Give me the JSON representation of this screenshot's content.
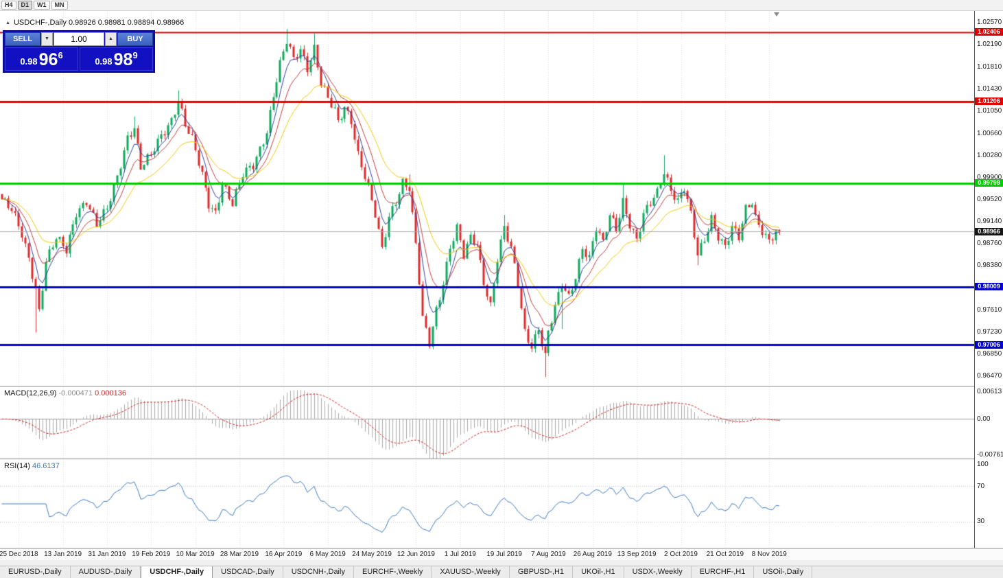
{
  "toolbar": {
    "timeframes": [
      "H4",
      "D1",
      "W1",
      "MN"
    ],
    "active": "D1"
  },
  "chart": {
    "title": "USDCHF-,Daily 0.98926 0.98981 0.98894 0.98966"
  },
  "icons": {
    "collapse": "▲",
    "spin_up": "▲",
    "spin_down": "▼"
  },
  "trade_panel": {
    "sell_label": "SELL",
    "buy_label": "BUY",
    "volume": "1.00",
    "sell_price": {
      "base": "0.98",
      "big": "96",
      "sup": "6"
    },
    "buy_price": {
      "base": "0.98",
      "big": "98",
      "sup": "9"
    }
  },
  "tabs": {
    "items": [
      "EURUSD-,Daily",
      "AUDUSD-,Daily",
      "USDCHF-,Daily",
      "USDCAD-,Daily",
      "USDCNH-,Daily",
      "EURCHF-,Weekly",
      "XAUUSD-,Weekly",
      "GBPUSD-,H1",
      "UKOil-,H1",
      "USDX-,Weekly",
      "EURCHF-,H1",
      "USOil-,Daily"
    ],
    "active_index": 2
  },
  "chart_data": {
    "type": "candlestick",
    "symbol": "USDCHF-",
    "timeframe": "Daily",
    "ohlc_display": {
      "open": "0.98926",
      "high": "0.98981",
      "low": "0.98894",
      "close": "0.98966"
    },
    "colors": {
      "up": "#0fa95c",
      "down": "#dd2b2b"
    },
    "price_axis": {
      "min": 0.963,
      "max": 1.0277,
      "ticks": [
        "1.02570",
        "1.02190",
        "1.01810",
        "1.01430",
        "1.01050",
        "1.00660",
        "1.00280",
        "0.99900",
        "0.99520",
        "0.99140",
        "0.98760",
        "0.98380",
        "0.97610",
        "0.97230",
        "0.96850",
        "0.96470"
      ]
    },
    "hlines": [
      {
        "price": 1.02406,
        "label": "1.02406",
        "color": "#e00000",
        "width": 2
      },
      {
        "price": 1.01206,
        "label": "1.01206",
        "color": "#e00000",
        "width": 3
      },
      {
        "price": 0.99798,
        "label": "0.99798",
        "color": "#00cc00",
        "width": 3
      },
      {
        "price": 0.98009,
        "label": "0.98009",
        "color": "#0000d0",
        "width": 3
      },
      {
        "price": 0.97006,
        "label": "0.97006",
        "color": "#0000d0",
        "width": 3
      }
    ],
    "current_price": {
      "price": 0.98966,
      "label": "0.98966"
    },
    "candles": {
      "count": 230,
      "spacing": 4.95,
      "anchors": [
        [
          0,
          0.9952
        ],
        [
          3,
          0.993
        ],
        [
          6,
          0.989
        ],
        [
          8,
          0.9852
        ],
        [
          10,
          0.98
        ],
        [
          11,
          0.9762
        ],
        [
          13,
          0.9845
        ],
        [
          16,
          0.9882
        ],
        [
          19,
          0.9862
        ],
        [
          22,
          0.9932
        ],
        [
          25,
          0.9952
        ],
        [
          28,
          0.9906
        ],
        [
          31,
          0.9932
        ],
        [
          34,
          0.9992
        ],
        [
          37,
          1.0062
        ],
        [
          39,
          1.0078
        ],
        [
          41,
          1.0005
        ],
        [
          44,
          1.0025
        ],
        [
          47,
          1.0062
        ],
        [
          50,
          1.0092
        ],
        [
          52,
          1.0125
        ],
        [
          54,
          1.008
        ],
        [
          56,
          1.0052
        ],
        [
          59,
          0.9992
        ],
        [
          61,
          0.9945
        ],
        [
          63,
          0.9932
        ],
        [
          65,
          0.9982
        ],
        [
          68,
          0.9942
        ],
        [
          71,
          0.9992
        ],
        [
          74,
          1.0012
        ],
        [
          78,
          1.0072
        ],
        [
          80,
          1.0132
        ],
        [
          82,
          1.0182
        ],
        [
          84,
          1.0222
        ],
        [
          86,
          1.0192
        ],
        [
          88,
          1.0212
        ],
        [
          90,
          1.0182
        ],
        [
          92,
          1.0215
        ],
        [
          94,
          1.0152
        ],
        [
          96,
          1.0122
        ],
        [
          98,
          1.0102
        ],
        [
          99,
          1.0082
        ],
        [
          101,
          1.0112
        ],
        [
          103,
          1.0092
        ],
        [
          105,
          1.0032
        ],
        [
          107,
          0.9992
        ],
        [
          110,
          0.9922
        ],
        [
          112,
          0.9862
        ],
        [
          114,
          0.9922
        ],
        [
          116,
          0.9952
        ],
        [
          118,
          0.9985
        ],
        [
          120,
          0.9972
        ],
        [
          122,
          0.9872
        ],
        [
          124,
          0.9742
        ],
        [
          126,
          0.9702
        ],
        [
          128,
          0.9762
        ],
        [
          130,
          0.9812
        ],
        [
          132,
          0.9872
        ],
        [
          134,
          0.9902
        ],
        [
          136,
          0.9852
        ],
        [
          138,
          0.9882
        ],
        [
          140,
          0.9872
        ],
        [
          142,
          0.9812
        ],
        [
          144,
          0.9772
        ],
        [
          146,
          0.9852
        ],
        [
          148,
          0.9902
        ],
        [
          150,
          0.9862
        ],
        [
          152,
          0.9802
        ],
        [
          154,
          0.9722
        ],
        [
          156,
          0.9702
        ],
        [
          158,
          0.9732
        ],
        [
          160,
          0.9682
        ],
        [
          161,
          0.9722
        ],
        [
          163,
          0.9762
        ],
        [
          165,
          0.9802
        ],
        [
          167,
          0.9782
        ],
        [
          169,
          0.9822
        ],
        [
          171,
          0.9872
        ],
        [
          173,
          0.9852
        ],
        [
          175,
          0.9902
        ],
        [
          177,
          0.9872
        ],
        [
          179,
          0.9922
        ],
        [
          181,
          0.9902
        ],
        [
          183,
          0.9952
        ],
        [
          185,
          0.9912
        ],
        [
          187,
          0.9882
        ],
        [
          189,
          0.9922
        ],
        [
          191,
          0.9942
        ],
        [
          193,
          0.9962
        ],
        [
          195,
          1.0002
        ],
        [
          197,
          0.9972
        ],
        [
          199,
          0.9952
        ],
        [
          201,
          0.9972
        ],
        [
          203,
          0.9922
        ],
        [
          205,
          0.9852
        ],
        [
          207,
          0.9882
        ],
        [
          209,
          0.9922
        ],
        [
          211,
          0.9892
        ],
        [
          213,
          0.9872
        ],
        [
          215,
          0.9902
        ],
        [
          217,
          0.9882
        ],
        [
          219,
          0.9932
        ],
        [
          221,
          0.9948
        ],
        [
          222,
          0.9922
        ],
        [
          224,
          0.9902
        ],
        [
          226,
          0.9882
        ],
        [
          228,
          0.9895
        ],
        [
          229,
          0.98966
        ]
      ],
      "wicks": [
        {
          "i": 10,
          "low": 0.9722
        },
        {
          "i": 160,
          "low": 0.9645
        },
        {
          "i": 52,
          "high": 1.014
        },
        {
          "i": 39,
          "high": 1.0095
        },
        {
          "i": 84,
          "high": 1.0246
        },
        {
          "i": 92,
          "high": 1.0238
        },
        {
          "i": 120,
          "high": 0.9995
        },
        {
          "i": 148,
          "high": 0.9925
        },
        {
          "i": 165,
          "low": 0.9728
        },
        {
          "i": 183,
          "high": 0.9978
        },
        {
          "i": 195,
          "high": 1.0028
        },
        {
          "i": 205,
          "low": 0.9838
        }
      ]
    },
    "moving_averages": [
      {
        "period": 5,
        "color": "#2b3f9e"
      },
      {
        "period": 10,
        "color": "#c23a3a"
      },
      {
        "period": 21,
        "color": "#f0c80a"
      }
    ],
    "date_labels": [
      {
        "i": 5,
        "label": "25 Dec 2018"
      },
      {
        "i": 18,
        "label": "13 Jan 2019"
      },
      {
        "i": 31,
        "label": "31 Jan 2019"
      },
      {
        "i": 44,
        "label": "19 Feb 2019"
      },
      {
        "i": 57,
        "label": "10 Mar 2019"
      },
      {
        "i": 70,
        "label": "28 Mar 2019"
      },
      {
        "i": 83,
        "label": "16 Apr 2019"
      },
      {
        "i": 96,
        "label": "6 May 2019"
      },
      {
        "i": 109,
        "label": "24 May 2019"
      },
      {
        "i": 122,
        "label": "12 Jun 2019"
      },
      {
        "i": 135,
        "label": "1 Jul 2019"
      },
      {
        "i": 148,
        "label": "19 Jul 2019"
      },
      {
        "i": 161,
        "label": "7 Aug 2019"
      },
      {
        "i": 174,
        "label": "26 Aug 2019"
      },
      {
        "i": 187,
        "label": "13 Sep 2019"
      },
      {
        "i": 200,
        "label": "2 Oct 2019"
      },
      {
        "i": 213,
        "label": "21 Oct 2019"
      },
      {
        "i": 226,
        "label": "8 Nov 2019"
      }
    ],
    "macd": {
      "name": "MACD(12,26,9)",
      "value_main": "-0.000471",
      "value_signal": "0.000136",
      "max": 0.00613,
      "min": -0.007612,
      "hist_color": "#a8a8a8",
      "signal_color": "#d02020",
      "axis": [
        {
          "v": 0.00613,
          "label": "0.00613"
        },
        {
          "v": 0,
          "label": "0.00"
        },
        {
          "v": -0.007612,
          "label": "-0.007612"
        }
      ]
    },
    "rsi": {
      "name": "RSI(14)",
      "value": "46.6137",
      "period": 14,
      "color": "#3a78c2",
      "levels": [
        70,
        30
      ],
      "axis": [
        {
          "v": 100,
          "label": "100"
        },
        {
          "v": 70,
          "label": "70"
        },
        {
          "v": 30,
          "label": "30"
        }
      ]
    }
  }
}
